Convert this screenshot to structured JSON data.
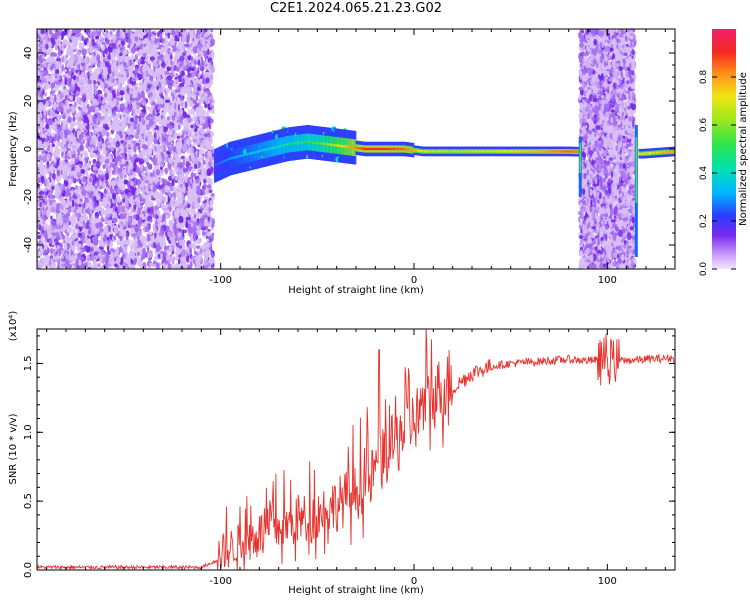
{
  "title": "C2E1.2024.065.21.23.G02",
  "chart_data": [
    {
      "type": "heatmap",
      "title": "C2E1.2024.065.21.23.G02",
      "xlabel": "Height of straight line (km)",
      "ylabel": "Frequency (Hz)",
      "xlim": [
        -195,
        135
      ],
      "ylim": [
        -50,
        50
      ],
      "x_ticks": [
        -100,
        0,
        100
      ],
      "y_ticks": [
        -40,
        -20,
        0,
        20,
        40
      ],
      "colorbar": {
        "label": "Normalized spectral amplitude",
        "ticks": [
          0.0,
          0.2,
          0.4,
          0.6,
          0.8
        ],
        "range": [
          0,
          1
        ]
      },
      "noise_bands": [
        [
          -195,
          -104
        ],
        [
          86,
          114
        ]
      ],
      "signal_trace": [
        {
          "x": -103,
          "freq": -7,
          "amp": 0.25
        },
        {
          "x": -95,
          "freq": -4,
          "amp": 0.3
        },
        {
          "x": -85,
          "freq": -2,
          "amp": 0.35
        },
        {
          "x": -75,
          "freq": 0,
          "amp": 0.4
        },
        {
          "x": -65,
          "freq": 2,
          "amp": 0.45
        },
        {
          "x": -55,
          "freq": 3,
          "amp": 0.5
        },
        {
          "x": -45,
          "freq": 2,
          "amp": 0.6
        },
        {
          "x": -35,
          "freq": 1,
          "amp": 0.75
        },
        {
          "x": -25,
          "freq": 0,
          "amp": 0.9
        },
        {
          "x": -15,
          "freq": 0,
          "amp": 0.9
        },
        {
          "x": -5,
          "freq": 0,
          "amp": 0.85
        },
        {
          "x": 5,
          "freq": -1,
          "amp": 0.7
        },
        {
          "x": 20,
          "freq": -1,
          "amp": 0.65
        },
        {
          "x": 40,
          "freq": -1,
          "amp": 0.7
        },
        {
          "x": 60,
          "freq": -1,
          "amp": 0.75
        },
        {
          "x": 80,
          "freq": -1,
          "amp": 0.85
        },
        {
          "x": 118,
          "freq": -2,
          "amp": 0.7
        },
        {
          "x": 135,
          "freq": -1,
          "amp": 0.8
        }
      ]
    },
    {
      "type": "line",
      "ylabel": "SNR (10 * v/v)",
      "yscale_note": "(x10⁴)",
      "xlabel": "Height of straight line (km)",
      "xlim": [
        -195,
        135
      ],
      "ylim": [
        0,
        1.75
      ],
      "x_ticks": [
        -100,
        0,
        100
      ],
      "y_ticks": [
        0.0,
        0.5,
        1.0,
        1.5
      ],
      "color": "#e8322d",
      "series": [
        {
          "x": [
            -195,
            -160,
            -130,
            -110,
            -100,
            -90,
            -80,
            -70,
            -60,
            -50,
            -40,
            -30,
            -22,
            -18,
            -10,
            0,
            10,
            20,
            30,
            40,
            50,
            60,
            70,
            80,
            90,
            100,
            110,
            120,
            135
          ],
          "values": [
            0.02,
            0.02,
            0.02,
            0.02,
            0.08,
            0.15,
            0.22,
            0.25,
            0.3,
            0.35,
            0.42,
            0.5,
            0.6,
            0.7,
            0.85,
            1.02,
            1.18,
            1.32,
            1.43,
            1.48,
            1.5,
            1.51,
            1.52,
            1.53,
            1.52,
            1.53,
            1.52,
            1.53,
            1.54
          ]
        }
      ]
    }
  ]
}
